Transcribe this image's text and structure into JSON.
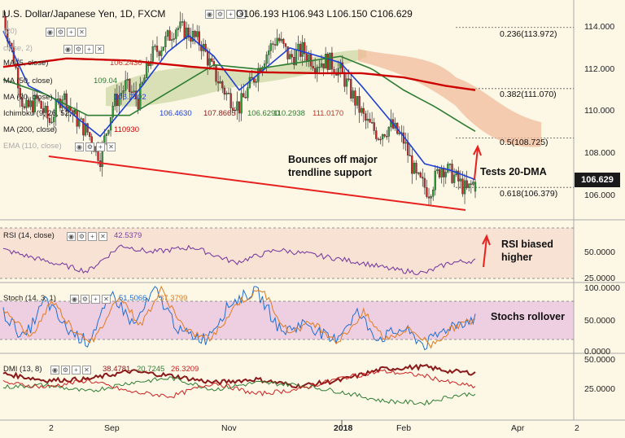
{
  "header": {
    "symbol": "U.S. Dollar/Japanese Yen, 1D, FXCM",
    "ohlc": "O106.193  H106.943  L106.150  C106.629"
  },
  "indicators": {
    "ma5": {
      "label": "MA (5, close)",
      "value": "106.2430",
      "color": "#c0392b"
    },
    "ma50": {
      "label": "MA (50, close)",
      "value": "109.04",
      "color": "#2e7d32"
    },
    "ma20": {
      "label": "MA (20, close)",
      "value": "106.7502",
      "color": "#1e3fd4"
    },
    "ichimoku": {
      "label": "Ichimoku (9, 26, 52, 26)",
      "v1": "106.4630",
      "v2": "107.8665",
      "v3": "106.6290",
      "v4": "110.2938",
      "v5": "111.0170"
    },
    "ma200": {
      "label": "MA (200, close)",
      "value": "110930",
      "color": "#cc0000"
    },
    "ema110": {
      "label": "EMA (110, close)"
    },
    "faded1": {
      "label": "(20)"
    },
    "faded2": {
      "label": "close, 2)"
    }
  },
  "fib_levels": [
    {
      "label": "0.236(113.972)",
      "value": 113.972
    },
    {
      "label": "0.382(111.070)",
      "value": 111.07
    },
    {
      "label": "0.5(108.725)",
      "value": 108.725
    },
    {
      "label": "0.618(106.379)",
      "value": 106.379
    }
  ],
  "annotations": {
    "trendline": "Bounces off major\ntrendline support",
    "tests_dma": "Tests 20-DMA",
    "rsi_note": "RSI biased\nhigher",
    "stoch_note": "Stochs rollover"
  },
  "price_tag": "106.629",
  "price_axis_ticks": [
    "114.000",
    "112.000",
    "110.000",
    "108.000",
    "106.000"
  ],
  "rsi": {
    "label": "RSI (14, close)",
    "value": "42.5379",
    "ticks": [
      "50.0000",
      "25.0000"
    ]
  },
  "stoch": {
    "label": "Stoch (14, 3, 1)",
    "v1": "51.5066",
    "v2": "37.3799",
    "ticks": [
      "100.0000",
      "50.0000",
      "0.0000"
    ]
  },
  "dmi": {
    "label": "DMI (13, 8)",
    "v1": "38.4781",
    "v2": "20.7245",
    "v3": "26.3209",
    "ticks": [
      "50.0000",
      "25.0000"
    ]
  },
  "x_axis_ticks": [
    "2",
    "Sep",
    "Nov",
    "2018",
    "Feb",
    "Apr",
    "2"
  ],
  "chart_data": {
    "type": "candlestick",
    "title": "U.S. Dollar/Japanese Yen, 1D, FXCM",
    "ylim": [
      105.0,
      115.2
    ],
    "x_labels": [
      "2",
      "Sep",
      "Nov",
      "2018",
      "Feb",
      "Apr",
      "2"
    ],
    "last_close": 106.629,
    "ohlc_last": {
      "open": 106.193,
      "high": 106.943,
      "low": 106.15,
      "close": 106.629
    },
    "price_anchors": [
      [
        0,
        114.5
      ],
      [
        5,
        112.5
      ],
      [
        10,
        110.0
      ],
      [
        16,
        110.5
      ],
      [
        22,
        109.5
      ],
      [
        28,
        110.8
      ],
      [
        34,
        109.7
      ],
      [
        40,
        109.0
      ],
      [
        46,
        107.8
      ],
      [
        52,
        110.3
      ],
      [
        58,
        111.2
      ],
      [
        64,
        110.5
      ],
      [
        70,
        112.6
      ],
      [
        76,
        113.2
      ],
      [
        82,
        114.0
      ],
      [
        88,
        113.7
      ],
      [
        94,
        113.2
      ],
      [
        100,
        111.8
      ],
      [
        106,
        110.8
      ],
      [
        112,
        110.2
      ],
      [
        118,
        111.4
      ],
      [
        124,
        112.6
      ],
      [
        130,
        113.5
      ],
      [
        136,
        112.5
      ],
      [
        142,
        112.9
      ],
      [
        148,
        112.3
      ],
      [
        154,
        112.4
      ],
      [
        160,
        111.9
      ],
      [
        166,
        110.7
      ],
      [
        172,
        109.5
      ],
      [
        178,
        108.9
      ],
      [
        184,
        109.3
      ],
      [
        190,
        108.6
      ],
      [
        196,
        106.8
      ],
      [
        202,
        106.2
      ],
      [
        208,
        107.4
      ],
      [
        214,
        106.9
      ],
      [
        220,
        106.2
      ],
      [
        224,
        106.7
      ]
    ],
    "series": [
      {
        "name": "MA (20, close)",
        "color": "#1e3fd4",
        "points": [
          [
            0,
            113.8
          ],
          [
            12,
            111.2
          ],
          [
            24,
            110.6
          ],
          [
            36,
            109.6
          ],
          [
            46,
            108.8
          ],
          [
            56,
            110.0
          ],
          [
            66,
            111.2
          ],
          [
            78,
            112.8
          ],
          [
            88,
            113.6
          ],
          [
            100,
            112.6
          ],
          [
            112,
            111.0
          ],
          [
            124,
            112.0
          ],
          [
            136,
            113.0
          ],
          [
            150,
            112.6
          ],
          [
            160,
            112.3
          ],
          [
            170,
            111.2
          ],
          [
            180,
            110.0
          ],
          [
            190,
            108.8
          ],
          [
            200,
            107.5
          ],
          [
            212,
            107.2
          ],
          [
            224,
            106.75
          ]
        ]
      },
      {
        "name": "MA (50, close)",
        "color": "#2e7d32",
        "points": [
          [
            0,
            111.5
          ],
          [
            20,
            110.8
          ],
          [
            40,
            109.8
          ],
          [
            60,
            109.8
          ],
          [
            80,
            111.0
          ],
          [
            100,
            112.2
          ],
          [
            120,
            112.0
          ],
          [
            140,
            112.3
          ],
          [
            160,
            112.6
          ],
          [
            175,
            112.0
          ],
          [
            190,
            111.0
          ],
          [
            205,
            110.2
          ],
          [
            218,
            109.4
          ],
          [
            224,
            109.04
          ]
        ]
      },
      {
        "name": "MA (200, close)",
        "color": "#cc0000",
        "points": [
          [
            0,
            112.1
          ],
          [
            30,
            112.5
          ],
          [
            60,
            112.4
          ],
          [
            90,
            112.1
          ],
          [
            120,
            111.85
          ],
          [
            150,
            111.8
          ],
          [
            170,
            111.8
          ],
          [
            190,
            111.6
          ],
          [
            210,
            111.2
          ],
          [
            224,
            111.0
          ]
        ]
      }
    ],
    "rsi": [
      [
        0,
        55
      ],
      [
        20,
        42
      ],
      [
        40,
        30
      ],
      [
        56,
        60
      ],
      [
        70,
        52
      ],
      [
        90,
        58
      ],
      [
        110,
        40
      ],
      [
        130,
        55
      ],
      [
        150,
        48
      ],
      [
        170,
        40
      ],
      [
        185,
        32
      ],
      [
        200,
        28
      ],
      [
        212,
        40
      ],
      [
        224,
        42.5
      ]
    ],
    "stoch": [
      [
        0,
        60
      ],
      [
        10,
        20
      ],
      [
        20,
        80
      ],
      [
        30,
        35
      ],
      [
        40,
        15
      ],
      [
        52,
        88
      ],
      [
        62,
        40
      ],
      [
        72,
        95
      ],
      [
        84,
        30
      ],
      [
        96,
        20
      ],
      [
        108,
        75
      ],
      [
        120,
        95
      ],
      [
        132,
        30
      ],
      [
        144,
        45
      ],
      [
        156,
        15
      ],
      [
        168,
        60
      ],
      [
        178,
        20
      ],
      [
        190,
        35
      ],
      [
        200,
        10
      ],
      [
        212,
        40
      ],
      [
        224,
        51.5
      ]
    ],
    "dmi": {
      "adx": [
        [
          0,
          38
        ],
        [
          20,
          32
        ],
        [
          40,
          33
        ],
        [
          60,
          40
        ],
        [
          80,
          36
        ],
        [
          100,
          30
        ],
        [
          120,
          33
        ],
        [
          140,
          27
        ],
        [
          160,
          32
        ],
        [
          180,
          42
        ],
        [
          200,
          44
        ],
        [
          212,
          40
        ],
        [
          224,
          38.5
        ]
      ],
      "plus_di": [
        [
          0,
          26
        ],
        [
          20,
          28
        ],
        [
          40,
          22
        ],
        [
          60,
          30
        ],
        [
          80,
          34
        ],
        [
          100,
          24
        ],
        [
          120,
          30
        ],
        [
          140,
          28
        ],
        [
          160,
          22
        ],
        [
          180,
          14
        ],
        [
          200,
          12
        ],
        [
          212,
          18
        ],
        [
          224,
          20.7
        ]
      ],
      "minus_di": [
        [
          0,
          30
        ],
        [
          20,
          26
        ],
        [
          40,
          32
        ],
        [
          60,
          22
        ],
        [
          80,
          18
        ],
        [
          100,
          30
        ],
        [
          120,
          20
        ],
        [
          140,
          24
        ],
        [
          160,
          34
        ],
        [
          180,
          40
        ],
        [
          200,
          36
        ],
        [
          212,
          30
        ],
        [
          224,
          26.3
        ]
      ]
    }
  }
}
